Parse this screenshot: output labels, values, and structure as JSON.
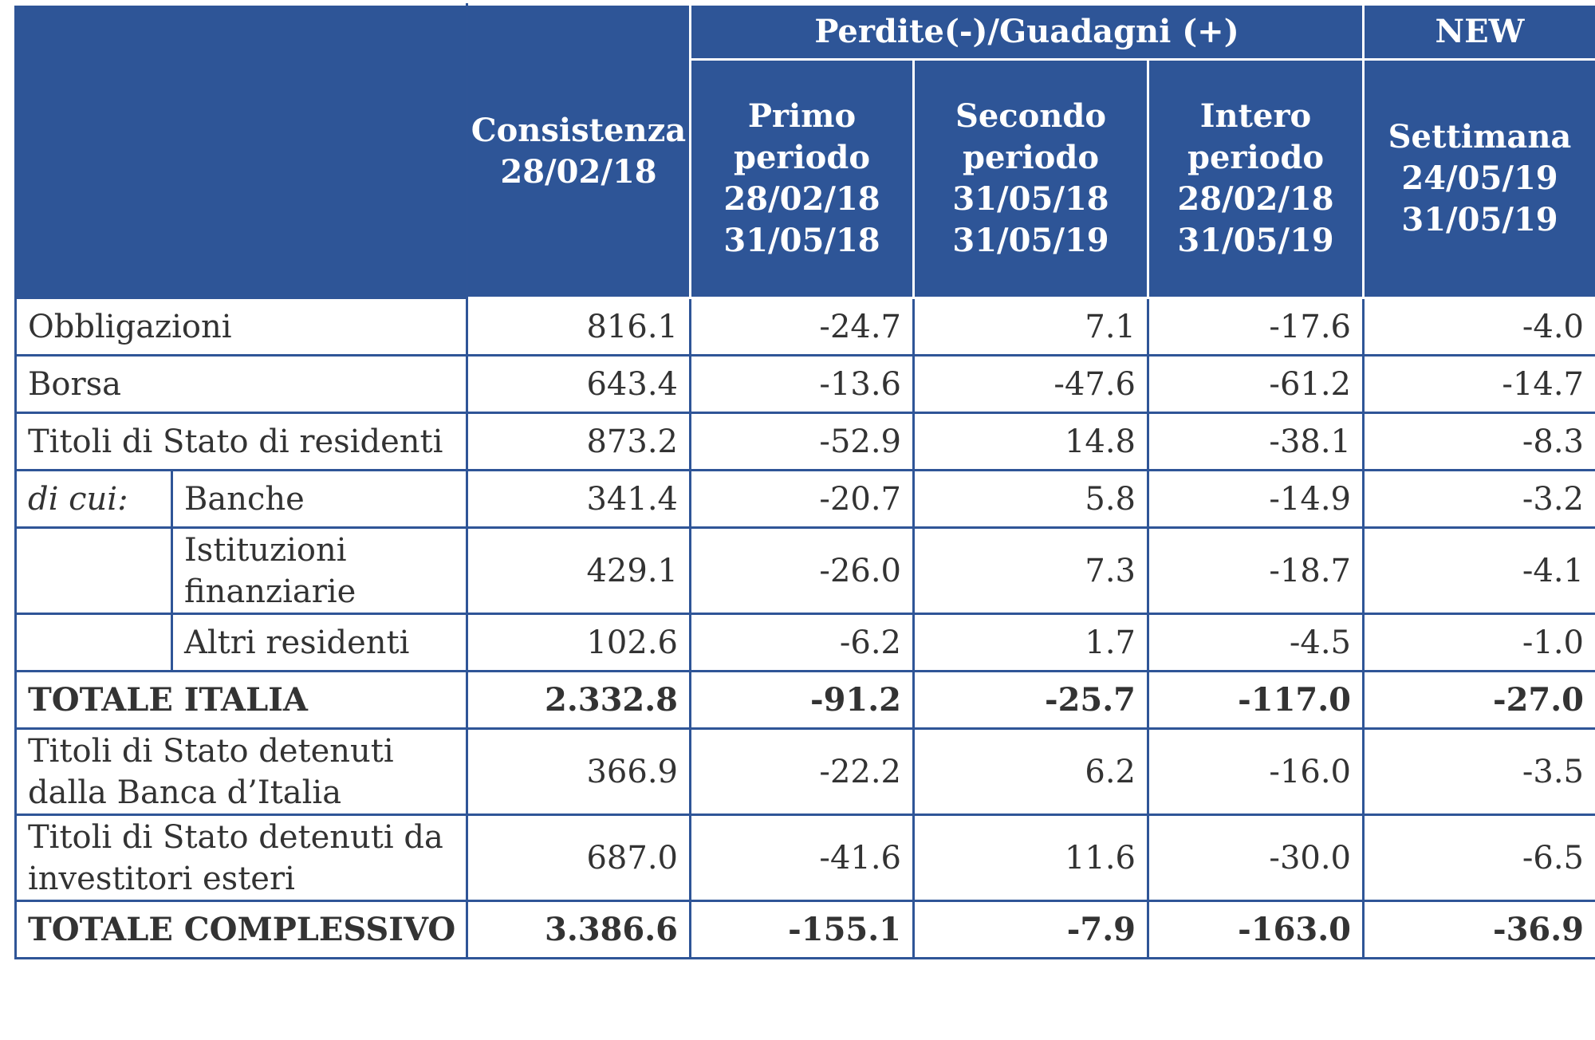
{
  "header": {
    "group_losses_gains": "Perdite(-)/Guadagni (+)",
    "group_new": "NEW",
    "col_consistenza": [
      "Consistenza",
      "28/02/18"
    ],
    "col_primo": [
      "Primo",
      "periodo",
      "28/02/18",
      "31/05/18"
    ],
    "col_secondo": [
      "Secondo",
      "periodo",
      "31/05/18",
      "31/05/19"
    ],
    "col_intero": [
      "Intero",
      "periodo",
      "28/02/18",
      "31/05/19"
    ],
    "col_settimana": [
      "Settimana",
      "24/05/19",
      "31/05/19"
    ]
  },
  "rows": [
    {
      "label": "Obbligazioni",
      "values": [
        "816.1",
        "-24.7",
        "7.1",
        "-17.6",
        "-4.0"
      ]
    },
    {
      "label": "Borsa",
      "values": [
        "643.4",
        "-13.6",
        "-47.6",
        "-61.2",
        "-14.7"
      ]
    },
    {
      "label": "Titoli di Stato di residenti",
      "values": [
        "873.2",
        "-52.9",
        "14.8",
        "-38.1",
        "-8.3"
      ]
    },
    {
      "prefix": "di cui:",
      "label": "Banche",
      "values": [
        "341.4",
        "-20.7",
        "5.8",
        "-14.9",
        "-3.2"
      ]
    },
    {
      "label": [
        "Istituzioni",
        "finanziarie"
      ],
      "values": [
        "429.1",
        "-26.0",
        "7.3",
        "-18.7",
        "-4.1"
      ]
    },
    {
      "label": "Altri residenti",
      "values": [
        "102.6",
        "-6.2",
        "1.7",
        "-4.5",
        "-1.0"
      ]
    },
    {
      "label": "TOTALE ITALIA",
      "values": [
        "2.332.8",
        "-91.2",
        "-25.7",
        "-117.0",
        "-27.0"
      ]
    },
    {
      "label": [
        "Titoli di Stato detenuti",
        "dalla Banca d’Italia"
      ],
      "values": [
        "366.9",
        "-22.2",
        "6.2",
        "-16.0",
        "-3.5"
      ]
    },
    {
      "label": [
        "Titoli di Stato detenuti da",
        "investitori esteri"
      ],
      "values": [
        "687.0",
        "-41.6",
        "11.6",
        "-30.0",
        "-6.5"
      ]
    },
    {
      "label": "TOTALE COMPLESSIVO",
      "values": [
        "3.386.6",
        "-155.1",
        "-7.9",
        "-163.0",
        "-36.9"
      ]
    }
  ],
  "colors": {
    "header_bg": "#2e5597",
    "header_text": "#ffffff",
    "border": "#2f5597",
    "body_text": "#333333"
  }
}
